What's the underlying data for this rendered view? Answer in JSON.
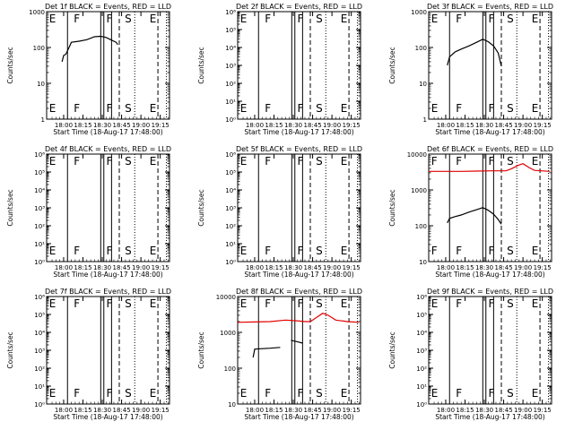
{
  "figure": {
    "x_axis_title": "Start Time (18-Aug-17 17:48:00)",
    "y_axis_title": "Counts/sec"
  },
  "chart_data": [
    {
      "id": "det-1f",
      "type": "line",
      "title": "Det 1f BLACK = Events, RED = LLD",
      "y_scale": "log",
      "ylim": [
        1,
        1000
      ],
      "y_ticks": [
        {
          "value": 1,
          "label": "1"
        },
        {
          "value": 10,
          "label": "10"
        },
        {
          "value": 100,
          "label": "100"
        },
        {
          "value": 1000,
          "label": "1000"
        }
      ],
      "x_ticks": [
        "18:00",
        "18:15",
        "18:30",
        "18:45",
        "19:00",
        "19:15"
      ],
      "flags": [
        "E",
        "F",
        "F",
        "S",
        "E"
      ],
      "series": [
        {
          "color": "#000000",
          "values": [
            [
              17.98,
              40
            ],
            [
              18.0,
              60
            ],
            [
              18.03,
              65
            ],
            [
              18.1,
              140
            ],
            [
              18.2,
              150
            ],
            [
              18.3,
              165
            ],
            [
              18.4,
              200
            ],
            [
              18.48,
              205
            ],
            [
              18.55,
              190
            ],
            [
              18.62,
              160
            ],
            [
              18.68,
              140
            ],
            [
              18.7,
              120
            ]
          ]
        }
      ]
    },
    {
      "id": "det-2f",
      "type": "line",
      "title": "Det 2f BLACK = Events, RED = LLD",
      "y_scale": "log",
      "ylim": [
        1,
        1000000
      ],
      "y_ticks": [
        {
          "value": 1,
          "label": "10⁰"
        },
        {
          "value": 10,
          "label": "10¹"
        },
        {
          "value": 100,
          "label": "10²"
        },
        {
          "value": 1000,
          "label": "10³"
        },
        {
          "value": 10000,
          "label": "10⁴"
        },
        {
          "value": 100000,
          "label": "10⁵"
        },
        {
          "value": 1000000,
          "label": "10⁶"
        }
      ],
      "x_ticks": [
        "18:00",
        "18:15",
        "18:30",
        "18:45",
        "19:00",
        "19:15"
      ],
      "flags": [
        "E",
        "F",
        "F",
        "S",
        "E"
      ],
      "series": []
    },
    {
      "id": "det-3f",
      "type": "line",
      "title": "Det 3f BLACK = Events, RED = LLD",
      "y_scale": "log",
      "ylim": [
        1,
        1000
      ],
      "y_ticks": [
        {
          "value": 1,
          "label": "1"
        },
        {
          "value": 10,
          "label": "10"
        },
        {
          "value": 100,
          "label": "100"
        },
        {
          "value": 1000,
          "label": "1000"
        }
      ],
      "x_ticks": [
        "18:00",
        "18:15",
        "18:30",
        "18:45",
        "19:00",
        "19:15"
      ],
      "flags": [
        "E",
        "F",
        "F",
        "S",
        "E"
      ],
      "series": [
        {
          "color": "#000000",
          "values": [
            [
              18.02,
              32
            ],
            [
              18.05,
              55
            ],
            [
              18.12,
              75
            ],
            [
              18.2,
              90
            ],
            [
              18.3,
              110
            ],
            [
              18.4,
              140
            ],
            [
              18.48,
              170
            ],
            [
              18.55,
              145
            ],
            [
              18.62,
              110
            ],
            [
              18.68,
              70
            ],
            [
              18.72,
              30
            ]
          ]
        }
      ]
    },
    {
      "id": "det-4f",
      "type": "line",
      "title": "Det 4f BLACK = Events, RED = LLD",
      "y_scale": "log",
      "ylim": [
        1,
        1000000
      ],
      "y_ticks": [
        {
          "value": 1,
          "label": "10⁰"
        },
        {
          "value": 10,
          "label": "10¹"
        },
        {
          "value": 100,
          "label": "10²"
        },
        {
          "value": 1000,
          "label": "10³"
        },
        {
          "value": 10000,
          "label": "10⁴"
        },
        {
          "value": 100000,
          "label": "10⁵"
        },
        {
          "value": 1000000,
          "label": "10⁶"
        }
      ],
      "x_ticks": [
        "18:00",
        "18:15",
        "18:30",
        "18:45",
        "19:00",
        "19:15"
      ],
      "flags": [
        "E",
        "F",
        "F",
        "S",
        "E"
      ],
      "series": []
    },
    {
      "id": "det-5f",
      "type": "line",
      "title": "Det 5f BLACK = Events, RED = LLD",
      "y_scale": "log",
      "ylim": [
        1,
        1000000
      ],
      "y_ticks": [
        {
          "value": 1,
          "label": "10⁰"
        },
        {
          "value": 10,
          "label": "10¹"
        },
        {
          "value": 100,
          "label": "10²"
        },
        {
          "value": 1000,
          "label": "10³"
        },
        {
          "value": 10000,
          "label": "10⁴"
        },
        {
          "value": 100000,
          "label": "10⁵"
        },
        {
          "value": 1000000,
          "label": "10⁶"
        }
      ],
      "x_ticks": [
        "18:00",
        "18:15",
        "18:30",
        "18:45",
        "19:00",
        "19:15"
      ],
      "flags": [
        "E",
        "F",
        "F",
        "S",
        "E"
      ],
      "series": []
    },
    {
      "id": "det-6f",
      "type": "line",
      "title": "Det 6f BLACK = Events, RED = LLD",
      "y_scale": "log",
      "ylim": [
        10,
        10000
      ],
      "y_ticks": [
        {
          "value": 10,
          "label": "10"
        },
        {
          "value": 100,
          "label": "100"
        },
        {
          "value": 1000,
          "label": "1000"
        },
        {
          "value": 10000,
          "label": "10000"
        }
      ],
      "x_ticks": [
        "18:00",
        "18:15",
        "18:30",
        "18:45",
        "19:00",
        "19:15"
      ],
      "flags": [
        "F",
        "F",
        "F",
        "S",
        "E"
      ],
      "series": [
        {
          "color": "#000000",
          "values": [
            [
              18.02,
              120
            ],
            [
              18.05,
              160
            ],
            [
              18.12,
              180
            ],
            [
              18.2,
              200
            ],
            [
              18.3,
              240
            ],
            [
              18.4,
              280
            ],
            [
              18.48,
              320
            ],
            [
              18.55,
              270
            ],
            [
              18.62,
              210
            ],
            [
              18.68,
              150
            ],
            [
              18.72,
              110
            ]
          ]
        },
        {
          "color": "#e00000",
          "values": [
            [
              17.78,
              3300
            ],
            [
              18.0,
              3300
            ],
            [
              18.2,
              3300
            ],
            [
              18.4,
              3350
            ],
            [
              18.6,
              3400
            ],
            [
              18.78,
              3400
            ],
            [
              18.85,
              3900
            ],
            [
              18.93,
              4800
            ],
            [
              19.0,
              5400
            ],
            [
              19.08,
              4200
            ],
            [
              19.15,
              3500
            ],
            [
              19.35,
              3300
            ]
          ]
        }
      ]
    },
    {
      "id": "det-7f",
      "type": "line",
      "title": "Det 7f BLACK = Events, RED = LLD",
      "y_scale": "log",
      "ylim": [
        1,
        1000000
      ],
      "y_ticks": [
        {
          "value": 1,
          "label": "10⁰"
        },
        {
          "value": 10,
          "label": "10¹"
        },
        {
          "value": 100,
          "label": "10²"
        },
        {
          "value": 1000,
          "label": "10³"
        },
        {
          "value": 10000,
          "label": "10⁴"
        },
        {
          "value": 100000,
          "label": "10⁵"
        },
        {
          "value": 1000000,
          "label": "10⁶"
        }
      ],
      "x_ticks": [
        "18:00",
        "18:15",
        "18:30",
        "18:45",
        "19:00",
        "19:15"
      ],
      "flags": [
        "E",
        "F",
        "F",
        "S",
        "E"
      ],
      "series": []
    },
    {
      "id": "det-8f",
      "type": "line",
      "title": "Det 8f BLACK = Events, RED = LLD",
      "y_scale": "log",
      "ylim": [
        10,
        10000
      ],
      "y_ticks": [
        {
          "value": 10,
          "label": "10"
        },
        {
          "value": 100,
          "label": "100"
        },
        {
          "value": 1000,
          "label": "1000"
        },
        {
          "value": 10000,
          "label": "10000"
        }
      ],
      "x_ticks": [
        "18:00",
        "18:15",
        "18:30",
        "18:45",
        "19:00",
        "19:15"
      ],
      "flags": [
        "E",
        "F",
        "F",
        "S",
        "E"
      ],
      "series": [
        {
          "color": "#000000",
          "values": [
            [
              17.98,
              200
            ],
            [
              18.0,
              340
            ],
            [
              18.2,
              360
            ],
            [
              18.33,
              380
            ]
          ]
        },
        {
          "color": "#000000",
          "values": [
            [
              18.47,
              600
            ],
            [
              18.55,
              550
            ],
            [
              18.62,
              500
            ]
          ]
        },
        {
          "color": "#e00000",
          "values": [
            [
              17.78,
              1900
            ],
            [
              18.0,
              1950
            ],
            [
              18.2,
              2000
            ],
            [
              18.4,
              2200
            ],
            [
              18.55,
              2100
            ],
            [
              18.65,
              2000
            ],
            [
              18.72,
              2000
            ],
            [
              18.8,
              2600
            ],
            [
              18.88,
              3400
            ],
            [
              18.95,
              3000
            ],
            [
              19.05,
              2200
            ],
            [
              19.2,
              2000
            ],
            [
              19.35,
              1900
            ]
          ]
        }
      ]
    },
    {
      "id": "det-9f",
      "type": "line",
      "title": "Det 9f BLACK = Events, RED = LLD",
      "y_scale": "log",
      "ylim": [
        1,
        1000000
      ],
      "y_ticks": [
        {
          "value": 1,
          "label": "10⁰"
        },
        {
          "value": 10,
          "label": "10¹"
        },
        {
          "value": 100,
          "label": "10²"
        },
        {
          "value": 1000,
          "label": "10³"
        },
        {
          "value": 10000,
          "label": "10⁴"
        },
        {
          "value": 100000,
          "label": "10⁵"
        },
        {
          "value": 1000000,
          "label": "10⁶"
        }
      ],
      "x_ticks": [
        "18:00",
        "18:15",
        "18:30",
        "18:45",
        "19:00",
        "19:15"
      ],
      "flags": [
        "E",
        "F",
        "F",
        "S",
        "E"
      ],
      "series": []
    }
  ]
}
